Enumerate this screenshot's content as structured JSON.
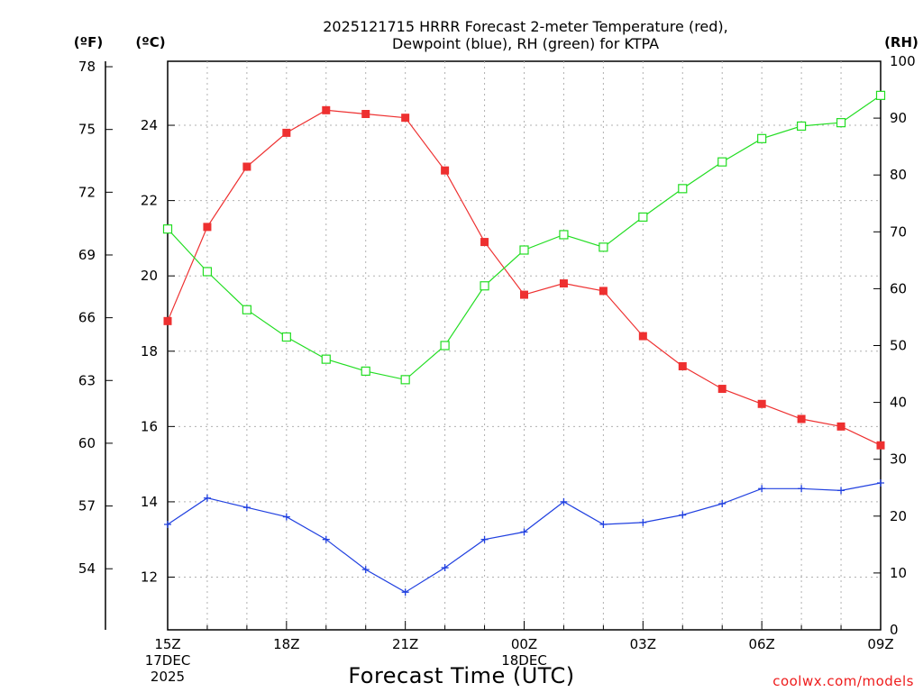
{
  "chart_data": {
    "type": "line",
    "title_line1": "2025121715 HRRR Forecast 2-meter Temperature (red),",
    "title_line2": "Dewpoint (blue), RH (green) for KTPA",
    "xlabel": "Forecast Time (UTC)",
    "credit": "coolwx.com/models",
    "units": {
      "fahrenheit": "(ºF)",
      "celsius": "(ºC)",
      "rh": "(RH)"
    },
    "x": {
      "min": 0,
      "max": 18,
      "major_step": 3,
      "ticks": [
        {
          "at": 0,
          "lines": [
            "15Z",
            "17DEC",
            "2025"
          ]
        },
        {
          "at": 3,
          "lines": [
            "18Z"
          ]
        },
        {
          "at": 6,
          "lines": [
            "21Z"
          ]
        },
        {
          "at": 9,
          "lines": [
            "00Z",
            "18DEC"
          ]
        },
        {
          "at": 12,
          "lines": [
            "03Z"
          ]
        },
        {
          "at": 15,
          "lines": [
            "06Z"
          ]
        },
        {
          "at": 18,
          "lines": [
            "09Z"
          ]
        }
      ]
    },
    "y_celsius": {
      "min": 10.6,
      "max": 25.7,
      "ticks": [
        12,
        14,
        16,
        18,
        20,
        22,
        24
      ]
    },
    "y_fahrenheit": {
      "min": 51.08,
      "max": 78.26,
      "ticks": [
        54,
        57,
        60,
        63,
        66,
        69,
        72,
        75,
        78
      ]
    },
    "y_rh": {
      "min": 0,
      "max": 100,
      "ticks": [
        0,
        10,
        20,
        30,
        40,
        50,
        60,
        70,
        80,
        90,
        100
      ]
    },
    "colors": {
      "temperature": "#ee3030",
      "dewpoint": "#2040e0",
      "rh": "#22dd22",
      "grid": "#b0b0b0"
    },
    "series": [
      {
        "name": "Temperature",
        "axis": "celsius",
        "marker": "filled-square",
        "values": [
          18.8,
          21.3,
          22.9,
          23.8,
          24.4,
          24.3,
          24.2,
          22.8,
          20.9,
          19.5,
          19.8,
          19.6,
          18.4,
          17.6,
          17.0,
          16.6,
          16.2,
          16.0,
          15.5
        ]
      },
      {
        "name": "Dewpoint",
        "axis": "celsius",
        "marker": "plus",
        "values": [
          13.4,
          14.1,
          13.85,
          13.6,
          13.0,
          12.2,
          11.6,
          12.25,
          13.0,
          13.2,
          14.0,
          13.4,
          13.45,
          13.65,
          13.95,
          14.35,
          14.35,
          14.3,
          14.5
        ]
      },
      {
        "name": "RH",
        "axis": "rh",
        "marker": "open-square",
        "values": [
          70.5,
          63.0,
          56.3,
          51.5,
          47.6,
          45.5,
          44.0,
          50.0,
          60.5,
          66.8,
          69.5,
          67.3,
          72.6,
          77.6,
          82.3,
          86.4,
          88.6,
          89.2,
          94.0
        ]
      }
    ]
  }
}
